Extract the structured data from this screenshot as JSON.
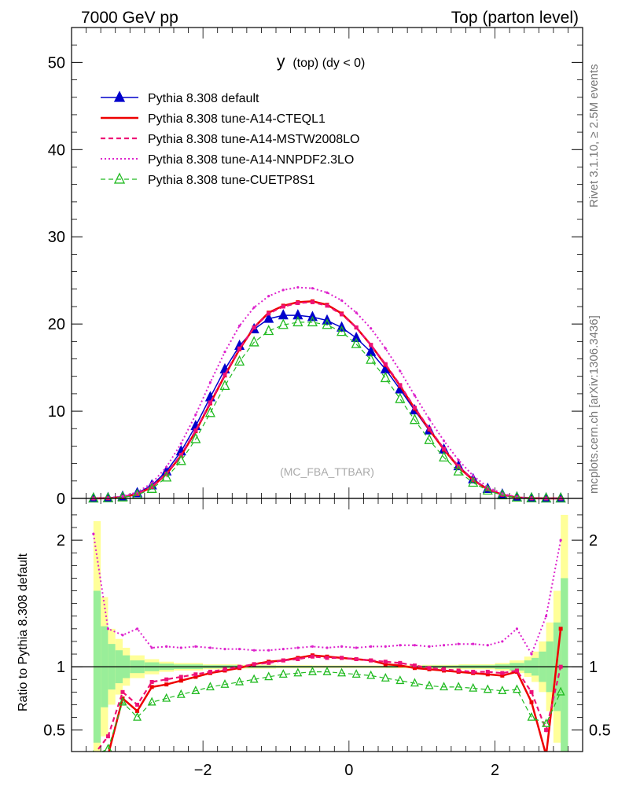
{
  "header": {
    "left": "7000 GeV pp",
    "right": "Top (parton level)"
  },
  "plot_title": {
    "main": "y",
    "suffix": "(top) (dy < 0)"
  },
  "watermark": "(MC_FBA_TTBAR)",
  "side_text": {
    "top": "Rivet 3.1.10, ≥ 2.5M events",
    "bottom": "mcplots.cern.ch [arXiv:1306.3436]"
  },
  "ratio_ylabel": "Ratio to Pythia 8.308 default",
  "colors": {
    "default": "#0000cc",
    "cteql1": "#ee0000",
    "mstw": "#ee1177",
    "nnpdf": "#dd22cc",
    "cuetp": "#22bb22",
    "band_outer": "#ffff99",
    "band_inner": "#99ee99"
  },
  "chart_data": [
    {
      "type": "line",
      "xlim": [
        -3.8,
        3.2
      ],
      "ylim": [
        0,
        54
      ],
      "yticks": [
        0,
        10,
        20,
        30,
        40,
        50
      ],
      "grid": false,
      "legend_position": "top-left",
      "series": [
        {
          "name": "Pythia 8.308 default",
          "style": "solid-triangle",
          "x": [
            -3.5,
            -3.3,
            -3.1,
            -2.9,
            -2.7,
            -2.5,
            -2.3,
            -2.1,
            -1.9,
            -1.7,
            -1.5,
            -1.3,
            -1.1,
            -0.9,
            -0.7,
            -0.5,
            -0.3,
            -0.1,
            0.1,
            0.3,
            0.5,
            0.7,
            0.9,
            1.1,
            1.3,
            1.5,
            1.7,
            1.9,
            2.1,
            2.3,
            2.5,
            2.7,
            2.9
          ],
          "y": [
            0.0,
            0.05,
            0.2,
            0.6,
            1.5,
            3.1,
            5.4,
            8.3,
            11.6,
            14.8,
            17.5,
            19.4,
            20.6,
            21.0,
            21.0,
            20.8,
            20.4,
            19.6,
            18.4,
            16.8,
            14.8,
            12.5,
            10.1,
            7.8,
            5.6,
            3.7,
            2.2,
            1.1,
            0.45,
            0.12,
            0.02,
            0.0,
            0.0
          ]
        },
        {
          "name": "Pythia 8.308 tune-A14-CTEQL1",
          "style": "solid",
          "x": [
            -3.5,
            -3.3,
            -3.1,
            -2.9,
            -2.7,
            -2.5,
            -2.3,
            -2.1,
            -1.9,
            -1.7,
            -1.5,
            -1.3,
            -1.1,
            -0.9,
            -0.7,
            -0.5,
            -0.3,
            -0.1,
            0.1,
            0.3,
            0.5,
            0.7,
            0.9,
            1.1,
            1.3,
            1.5,
            1.7,
            1.9,
            2.1,
            2.3,
            2.5,
            2.7,
            2.9
          ],
          "y": [
            0.0,
            0.03,
            0.15,
            0.5,
            1.3,
            2.8,
            4.9,
            7.7,
            10.9,
            14.1,
            17.1,
            19.6,
            21.3,
            22.1,
            22.5,
            22.6,
            22.2,
            21.2,
            19.6,
            17.6,
            15.3,
            12.9,
            10.3,
            7.9,
            5.6,
            3.6,
            2.1,
            1.05,
            0.42,
            0.12,
            0.02,
            0.0,
            0.0
          ]
        },
        {
          "name": "Pythia 8.308 tune-A14-MSTW2008LO",
          "style": "dashed",
          "x": [
            -3.5,
            -3.3,
            -3.1,
            -2.9,
            -2.7,
            -2.5,
            -2.3,
            -2.1,
            -1.9,
            -1.7,
            -1.5,
            -1.3,
            -1.1,
            -0.9,
            -0.7,
            -0.5,
            -0.3,
            -0.1,
            0.1,
            0.3,
            0.5,
            0.7,
            0.9,
            1.1,
            1.3,
            1.5,
            1.7,
            1.9,
            2.1,
            2.3,
            2.5,
            2.7,
            2.9
          ],
          "y": [
            0.0,
            0.03,
            0.16,
            0.52,
            1.35,
            2.85,
            5.0,
            7.8,
            11.0,
            14.2,
            17.2,
            19.6,
            21.2,
            22.0,
            22.4,
            22.5,
            22.1,
            21.1,
            19.6,
            17.6,
            15.4,
            13.0,
            10.4,
            8.0,
            5.7,
            3.7,
            2.15,
            1.08,
            0.44,
            0.12,
            0.02,
            0.0,
            0.0
          ]
        },
        {
          "name": "Pythia 8.308 tune-A14-NNPDF2.3LO",
          "style": "dotted",
          "x": [
            -3.5,
            -3.3,
            -3.1,
            -2.9,
            -2.7,
            -2.5,
            -2.3,
            -2.1,
            -1.9,
            -1.7,
            -1.5,
            -1.3,
            -1.1,
            -0.9,
            -0.7,
            -0.5,
            -0.3,
            -0.1,
            0.1,
            0.3,
            0.5,
            0.7,
            0.9,
            1.1,
            1.3,
            1.5,
            1.7,
            1.9,
            2.1,
            2.3,
            2.5,
            2.7,
            2.9
          ],
          "y": [
            0.0,
            0.06,
            0.24,
            0.72,
            1.75,
            3.6,
            6.3,
            9.6,
            13.3,
            16.8,
            19.8,
            21.9,
            23.2,
            23.9,
            24.2,
            24.1,
            23.6,
            22.7,
            21.3,
            19.5,
            17.2,
            14.6,
            11.8,
            9.1,
            6.6,
            4.4,
            2.6,
            1.3,
            0.55,
            0.15,
            0.03,
            0.0,
            0.0
          ]
        },
        {
          "name": "Pythia 8.308 tune-CUETP8S1",
          "style": "dashed-open-triangle",
          "x": [
            -3.5,
            -3.3,
            -3.1,
            -2.9,
            -2.7,
            -2.5,
            -2.3,
            -2.1,
            -1.9,
            -1.7,
            -1.5,
            -1.3,
            -1.1,
            -0.9,
            -0.7,
            -0.5,
            -0.3,
            -0.1,
            0.1,
            0.3,
            0.5,
            0.7,
            0.9,
            1.1,
            1.3,
            1.5,
            1.7,
            1.9,
            2.1,
            2.3,
            2.5,
            2.7,
            2.9
          ],
          "y": [
            0.0,
            0.02,
            0.12,
            0.4,
            1.1,
            2.4,
            4.3,
            6.8,
            9.8,
            12.9,
            15.7,
            17.9,
            19.2,
            19.9,
            20.2,
            20.2,
            19.9,
            19.1,
            17.7,
            15.9,
            13.8,
            11.4,
            9.0,
            6.7,
            4.7,
            3.1,
            1.8,
            0.9,
            0.36,
            0.1,
            0.02,
            0.0,
            0.0
          ]
        }
      ]
    },
    {
      "type": "line",
      "ylabel": "Ratio to Pythia 8.308 default",
      "xlim": [
        -3.8,
        3.2
      ],
      "ylim": [
        0.33,
        2.33
      ],
      "xticks": [
        -2,
        0,
        2
      ],
      "yticks": [
        0.5,
        1,
        2
      ],
      "grid": false,
      "reference_line": 1,
      "band": {
        "x_edges": [
          -3.5,
          -3.4,
          -3.3,
          -3.2,
          -3.1,
          -3.0,
          -2.8,
          -2.6,
          -2.4,
          -2.0,
          -1.5,
          -1.0,
          -0.5,
          0.0,
          0.5,
          1.0,
          1.5,
          2.0,
          2.2,
          2.4,
          2.5,
          2.6,
          2.7,
          2.8,
          2.9,
          3.0
        ],
        "outer": [
          1.15,
          0.55,
          0.3,
          0.22,
          0.15,
          0.09,
          0.06,
          0.04,
          0.03,
          0.02,
          0.015,
          0.012,
          0.01,
          0.01,
          0.012,
          0.015,
          0.02,
          0.03,
          0.05,
          0.08,
          0.12,
          0.2,
          0.35,
          0.6,
          1.2
        ],
        "inner": [
          0.6,
          0.32,
          0.18,
          0.13,
          0.09,
          0.05,
          0.035,
          0.025,
          0.018,
          0.012,
          0.009,
          0.007,
          0.006,
          0.006,
          0.007,
          0.009,
          0.012,
          0.018,
          0.03,
          0.05,
          0.07,
          0.12,
          0.2,
          0.35,
          0.7
        ]
      },
      "series": [
        {
          "name": "Pythia 8.308 tune-A14-CTEQL1",
          "x": [
            -3.5,
            -3.3,
            -3.1,
            -2.9,
            -2.7,
            -2.5,
            -2.3,
            -2.1,
            -1.9,
            -1.7,
            -1.5,
            -1.3,
            -1.1,
            -0.9,
            -0.7,
            -0.5,
            -0.3,
            -0.1,
            0.1,
            0.3,
            0.5,
            0.7,
            0.9,
            1.1,
            1.3,
            1.5,
            1.7,
            1.9,
            2.1,
            2.3,
            2.5,
            2.7,
            2.9
          ],
          "y": [
            0.2,
            0.3,
            0.75,
            0.65,
            0.84,
            0.86,
            0.89,
            0.92,
            0.95,
            0.97,
            0.99,
            1.02,
            1.04,
            1.05,
            1.07,
            1.09,
            1.08,
            1.07,
            1.06,
            1.05,
            1.02,
            1.01,
            0.99,
            0.98,
            0.97,
            0.96,
            0.95,
            0.94,
            0.93,
            0.96,
            0.72,
            0.3,
            1.3
          ]
        },
        {
          "name": "Pythia 8.308 tune-A14-MSTW2008LO",
          "x": [
            -3.5,
            -3.3,
            -3.1,
            -2.9,
            -2.7,
            -2.5,
            -2.3,
            -2.1,
            -1.9,
            -1.7,
            -1.5,
            -1.3,
            -1.1,
            -0.9,
            -0.7,
            -0.5,
            -0.3,
            -0.1,
            0.1,
            0.3,
            0.5,
            0.7,
            0.9,
            1.1,
            1.3,
            1.5,
            1.7,
            1.9,
            2.1,
            2.3,
            2.5,
            2.7,
            2.9
          ],
          "y": [
            0.3,
            0.45,
            0.8,
            0.7,
            0.88,
            0.9,
            0.92,
            0.94,
            0.96,
            0.98,
            1.0,
            1.02,
            1.03,
            1.05,
            1.06,
            1.08,
            1.07,
            1.07,
            1.06,
            1.05,
            1.04,
            1.03,
            1.01,
            0.99,
            0.98,
            0.97,
            0.96,
            0.96,
            0.95,
            0.97,
            0.8,
            0.5,
            1.0
          ]
        },
        {
          "name": "Pythia 8.308 tune-A14-NNPDF2.3LO",
          "x": [
            -3.5,
            -3.3,
            -3.1,
            -2.9,
            -2.7,
            -2.5,
            -2.3,
            -2.1,
            -1.9,
            -1.7,
            -1.5,
            -1.3,
            -1.1,
            -0.9,
            -0.7,
            -0.5,
            -0.3,
            -0.1,
            0.1,
            0.3,
            0.5,
            0.7,
            0.9,
            1.1,
            1.3,
            1.5,
            1.7,
            1.9,
            2.1,
            2.3,
            2.5,
            2.7,
            2.9
          ],
          "y": [
            2.05,
            1.3,
            1.25,
            1.3,
            1.15,
            1.16,
            1.15,
            1.16,
            1.15,
            1.14,
            1.14,
            1.13,
            1.13,
            1.14,
            1.15,
            1.16,
            1.15,
            1.16,
            1.15,
            1.16,
            1.16,
            1.17,
            1.17,
            1.16,
            1.17,
            1.18,
            1.18,
            1.17,
            1.2,
            1.3,
            1.1,
            1.4,
            2.0
          ]
        },
        {
          "name": "Pythia 8.308 tune-CUETP8S1",
          "x": [
            -3.5,
            -3.3,
            -3.1,
            -2.9,
            -2.7,
            -2.5,
            -2.3,
            -2.1,
            -1.9,
            -1.7,
            -1.5,
            -1.3,
            -1.1,
            -0.9,
            -0.7,
            -0.5,
            -0.3,
            -0.1,
            0.1,
            0.3,
            0.5,
            0.7,
            0.9,
            1.1,
            1.3,
            1.5,
            1.7,
            1.9,
            2.1,
            2.3,
            2.5,
            2.7,
            2.9
          ],
          "y": [
            0.3,
            0.35,
            0.72,
            0.6,
            0.72,
            0.75,
            0.78,
            0.81,
            0.84,
            0.86,
            0.88,
            0.9,
            0.92,
            0.94,
            0.95,
            0.96,
            0.96,
            0.95,
            0.94,
            0.93,
            0.91,
            0.89,
            0.87,
            0.85,
            0.84,
            0.84,
            0.83,
            0.82,
            0.81,
            0.82,
            0.6,
            0.55,
            0.8
          ]
        }
      ]
    }
  ]
}
